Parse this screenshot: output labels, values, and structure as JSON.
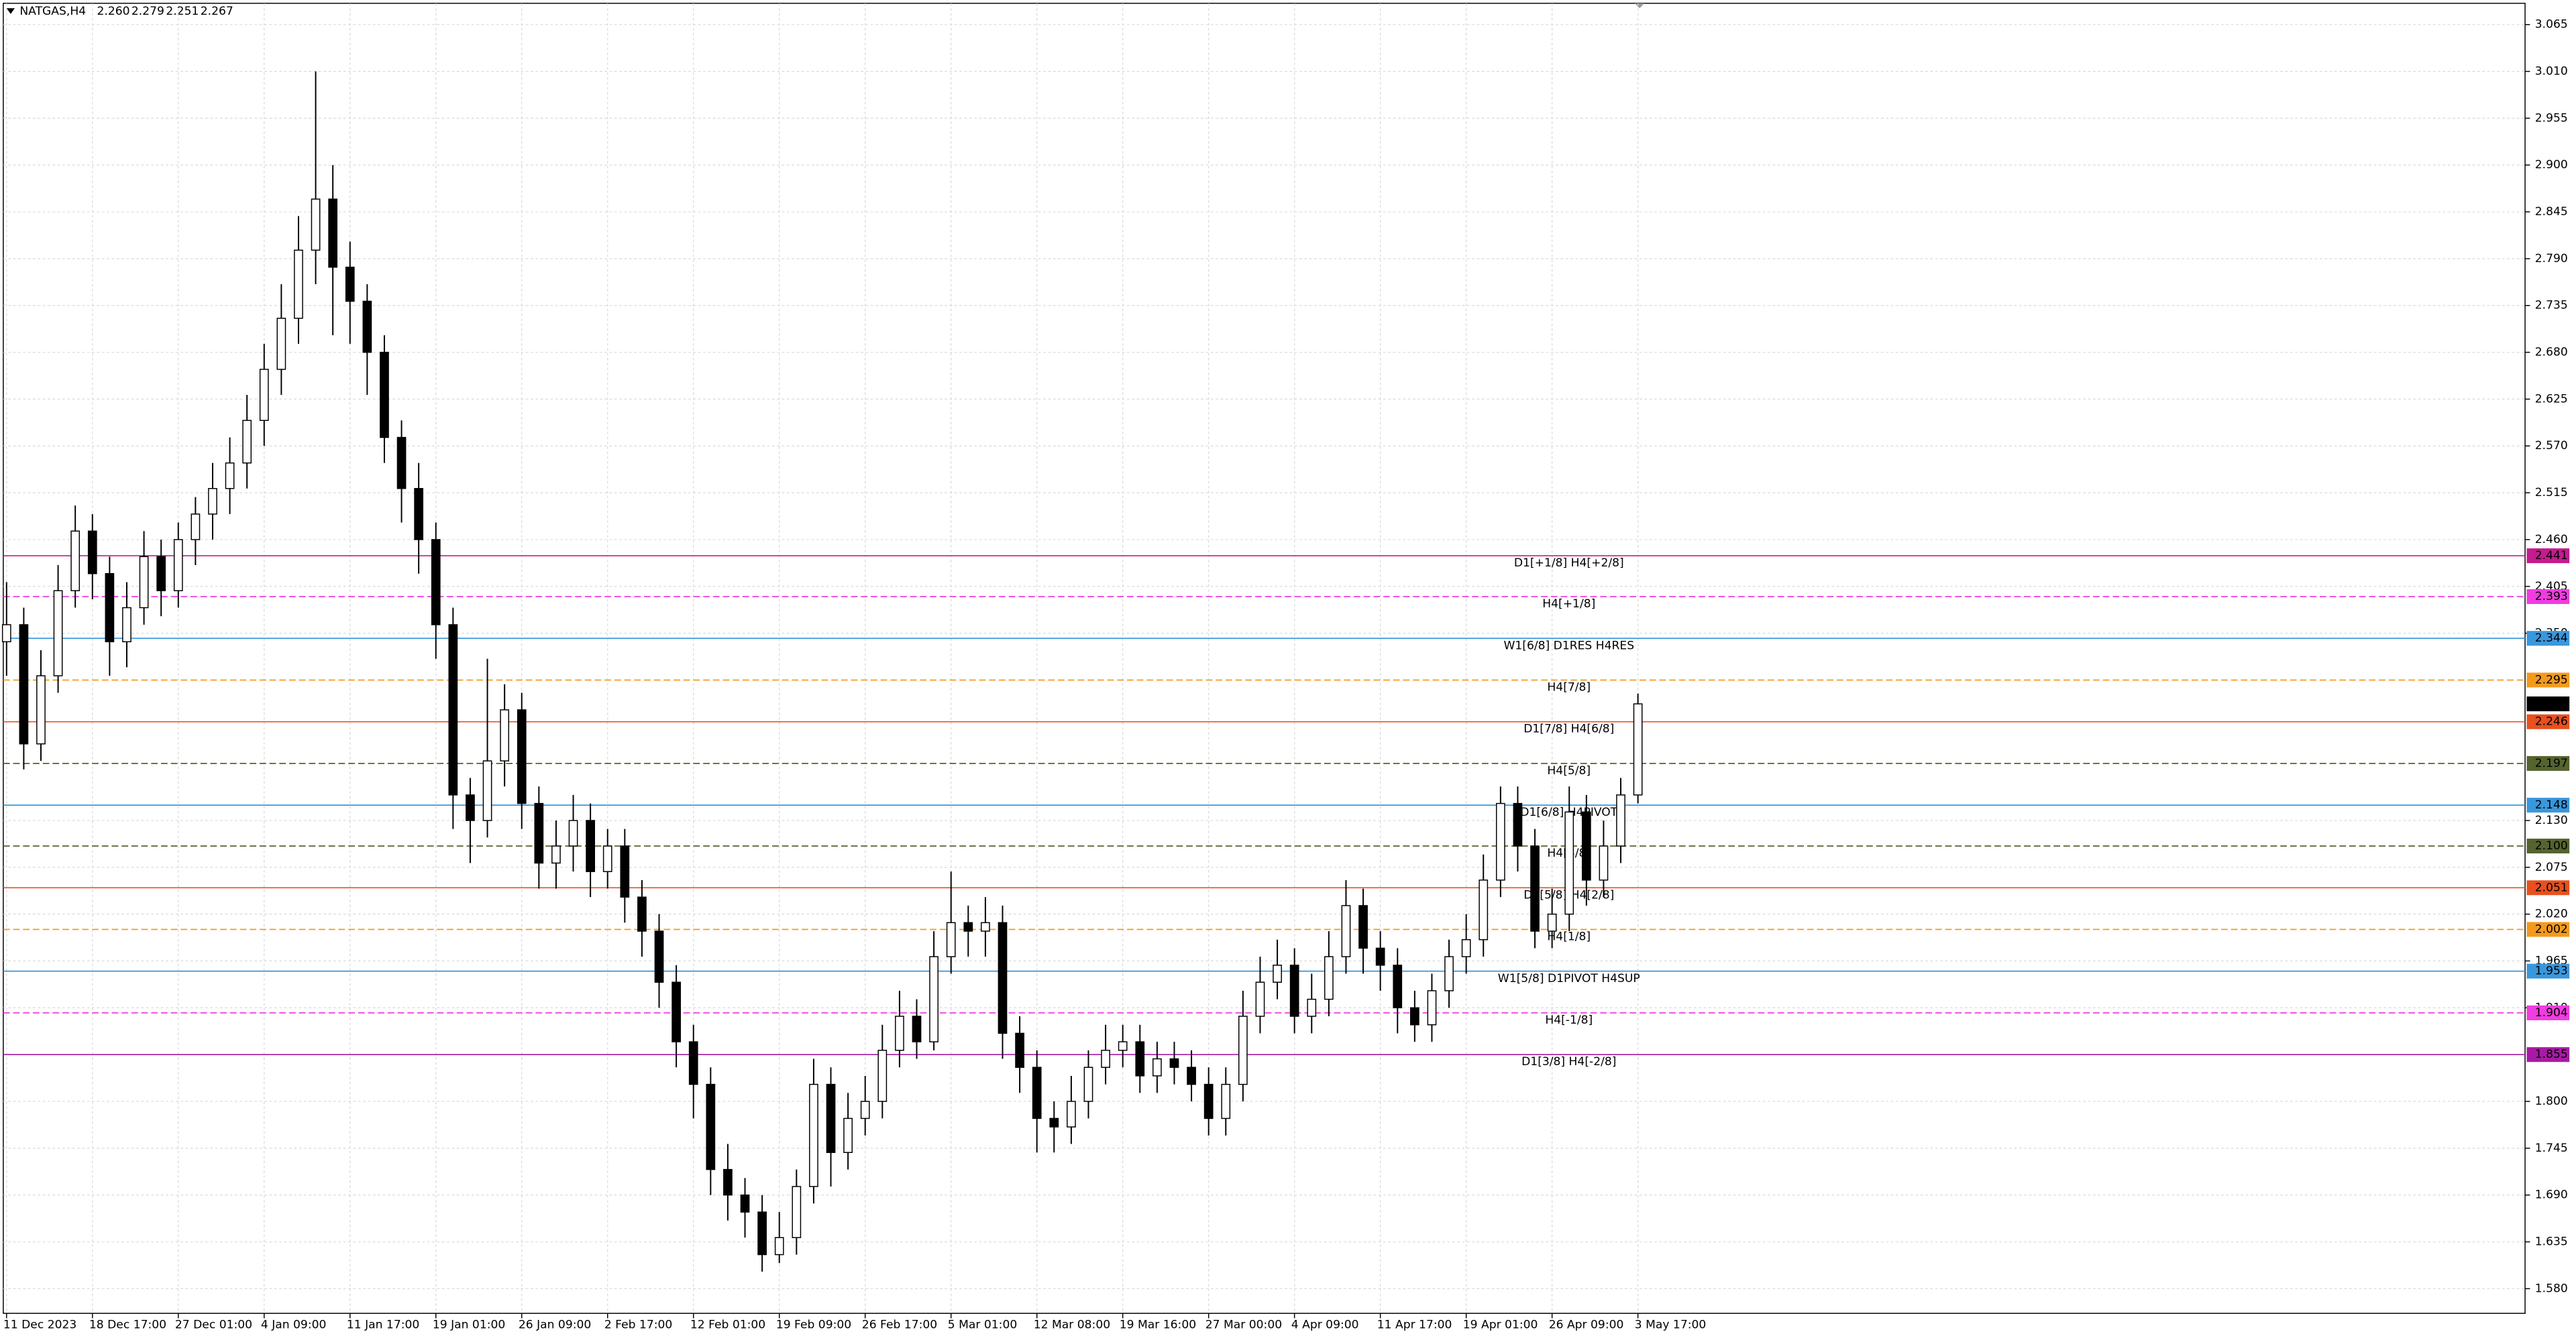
{
  "chart_data": {
    "type": "candlestick",
    "header": {
      "symbol": "NATGAS,H4",
      "ohlc": [
        {
          "value": 2.26,
          "label": "2.260"
        },
        2.279,
        2.251,
        2.267
      ]
    },
    "categories": [
      "11 Dec 2023",
      null,
      null,
      null,
      null,
      "18 Dec 17:00",
      null,
      null,
      null,
      null,
      "27 Dec 01:00",
      null,
      null,
      null,
      null,
      "4 Jan 09:00",
      null,
      null,
      null,
      null,
      "11 Jan 17:00",
      null,
      null,
      null,
      null,
      "19 Jan 01:00",
      null,
      null,
      null,
      null,
      "26 Jan 09:00",
      null,
      null,
      null,
      null,
      "2 Feb 17:00",
      null,
      null,
      null,
      null,
      "12 Feb 01:00",
      null,
      null,
      null,
      null,
      "19 Feb 09:00",
      null,
      null,
      null,
      null,
      "26 Feb 17:00",
      null,
      null,
      null,
      null,
      "5 Mar 01:00",
      null,
      null,
      null,
      null,
      "12 Mar 08:00",
      null,
      null,
      null,
      null,
      "19 Mar 16:00",
      null,
      null,
      null,
      null,
      "27 Mar 00:00",
      null,
      null,
      null,
      null,
      "4 Apr 09:00",
      null,
      null,
      null,
      null,
      "11 Apr 17:00",
      null,
      null,
      null,
      null,
      "19 Apr 01:00",
      null,
      null,
      null,
      null,
      "26 Apr 09:00",
      null,
      null,
      null,
      null,
      "3 May 17:00"
    ],
    "open": [
      2.34,
      2.36,
      2.22,
      2.3,
      2.4,
      2.47,
      2.42,
      2.34,
      2.38,
      2.44,
      2.4,
      2.46,
      2.49,
      2.52,
      2.55,
      2.6,
      2.66,
      2.72,
      2.8,
      2.86,
      2.78,
      2.74,
      2.68,
      2.58,
      2.52,
      2.46,
      2.36,
      2.16,
      2.13,
      2.2,
      2.26,
      2.15,
      2.08,
      2.1,
      2.13,
      2.07,
      2.1,
      2.04,
      2.0,
      1.94,
      1.87,
      1.82,
      1.72,
      1.69,
      1.67,
      1.62,
      1.64,
      1.7,
      1.82,
      1.74,
      1.78,
      1.8,
      1.86,
      1.9,
      1.87,
      1.97,
      2.01,
      2.0,
      2.01,
      1.88,
      1.84,
      1.78,
      1.77,
      1.8,
      1.84,
      1.86,
      1.87,
      1.83,
      1.85,
      1.84,
      1.82,
      1.78,
      1.82,
      1.9,
      1.94,
      1.96,
      1.9,
      1.92,
      1.97,
      2.03,
      1.98,
      1.96,
      1.91,
      1.89,
      1.93,
      1.97,
      1.99,
      2.06,
      2.15,
      2.1,
      2.0,
      2.02,
      2.14,
      2.06,
      2.1,
      2.16
    ],
    "high": [
      2.41,
      2.38,
      2.33,
      2.43,
      2.5,
      2.49,
      2.44,
      2.41,
      2.47,
      2.46,
      2.48,
      2.51,
      2.55,
      2.58,
      2.63,
      2.69,
      2.76,
      2.84,
      3.01,
      2.9,
      2.81,
      2.76,
      2.7,
      2.6,
      2.55,
      2.48,
      2.38,
      2.18,
      2.32,
      2.29,
      2.28,
      2.17,
      2.13,
      2.16,
      2.15,
      2.12,
      2.12,
      2.06,
      2.02,
      1.96,
      1.89,
      1.84,
      1.75,
      1.71,
      1.69,
      1.67,
      1.72,
      1.85,
      1.84,
      1.81,
      1.83,
      1.89,
      1.93,
      1.92,
      2.0,
      2.07,
      2.03,
      2.04,
      2.03,
      1.9,
      1.86,
      1.8,
      1.83,
      1.86,
      1.89,
      1.89,
      1.89,
      1.87,
      1.87,
      1.86,
      1.84,
      1.84,
      1.93,
      1.97,
      1.99,
      1.98,
      1.95,
      2.0,
      2.06,
      2.05,
      2.0,
      1.98,
      1.93,
      1.95,
      1.99,
      2.02,
      2.09,
      2.17,
      2.17,
      2.12,
      2.05,
      2.17,
      2.16,
      2.13,
      2.18,
      2.279
    ],
    "low": [
      2.3,
      2.19,
      2.2,
      2.28,
      2.38,
      2.39,
      2.3,
      2.31,
      2.36,
      2.37,
      2.38,
      2.43,
      2.46,
      2.49,
      2.52,
      2.57,
      2.63,
      2.69,
      2.76,
      2.7,
      2.69,
      2.63,
      2.55,
      2.48,
      2.42,
      2.32,
      2.12,
      2.08,
      2.11,
      2.17,
      2.12,
      2.05,
      2.05,
      2.07,
      2.04,
      2.05,
      2.01,
      1.97,
      1.91,
      1.84,
      1.78,
      1.69,
      1.66,
      1.64,
      1.6,
      1.61,
      1.62,
      1.68,
      1.7,
      1.72,
      1.76,
      1.78,
      1.84,
      1.85,
      1.86,
      1.95,
      1.97,
      1.97,
      1.85,
      1.81,
      1.74,
      1.74,
      1.75,
      1.78,
      1.82,
      1.84,
      1.81,
      1.81,
      1.82,
      1.8,
      1.76,
      1.76,
      1.8,
      1.88,
      1.92,
      1.88,
      1.88,
      1.9,
      1.95,
      1.95,
      1.93,
      1.88,
      1.87,
      1.87,
      1.91,
      1.95,
      1.97,
      2.04,
      2.07,
      1.98,
      1.98,
      2.0,
      2.03,
      2.04,
      2.08,
      2.15
    ],
    "close": [
      2.36,
      2.22,
      2.3,
      2.4,
      2.47,
      2.42,
      2.34,
      2.38,
      2.44,
      2.4,
      2.46,
      2.49,
      2.52,
      2.55,
      2.6,
      2.66,
      2.72,
      2.8,
      2.86,
      2.78,
      2.74,
      2.68,
      2.58,
      2.52,
      2.46,
      2.36,
      2.16,
      2.13,
      2.2,
      2.26,
      2.15,
      2.08,
      2.1,
      2.13,
      2.07,
      2.1,
      2.04,
      2.0,
      1.94,
      1.87,
      1.82,
      1.72,
      1.69,
      1.67,
      1.62,
      1.64,
      1.7,
      1.82,
      1.74,
      1.78,
      1.8,
      1.86,
      1.9,
      1.87,
      1.97,
      2.01,
      2.0,
      2.01,
      1.88,
      1.84,
      1.78,
      1.77,
      1.8,
      1.84,
      1.86,
      1.87,
      1.83,
      1.85,
      1.84,
      1.82,
      1.78,
      1.82,
      1.9,
      1.94,
      1.96,
      1.9,
      1.92,
      1.97,
      2.03,
      1.98,
      1.96,
      1.91,
      1.89,
      1.93,
      1.97,
      1.99,
      2.06,
      2.15,
      2.1,
      2.0,
      2.02,
      2.14,
      2.06,
      2.1,
      2.16,
      2.267
    ],
    "ylim": [
      1.551,
      3.09
    ],
    "yticks": [
      3.065,
      {
        "value": 3.01,
        "label": "3.010"
      },
      2.955,
      {
        "value": 2.9,
        "label": "2.900"
      },
      2.845,
      {
        "value": 2.79,
        "label": "2.790"
      },
      2.735,
      {
        "value": 2.68,
        "label": "2.680"
      },
      2.625,
      {
        "value": 2.57,
        "label": "2.570"
      },
      2.515,
      {
        "value": 2.46,
        "label": "2.460"
      },
      2.405,
      {
        "value": 2.35,
        "label": "2.350"
      },
      {
        "value": 2.13,
        "label": "2.130"
      },
      2.075,
      {
        "value": 2.02,
        "label": "2.020"
      },
      1.965,
      {
        "value": 1.91,
        "label": "1.910"
      },
      {
        "value": 1.8,
        "label": "1.800"
      },
      1.745,
      {
        "value": 1.69,
        "label": "1.690"
      },
      1.635,
      {
        "value": 1.58,
        "label": "1.580"
      }
    ],
    "grid": true,
    "levels": [
      {
        "value": 2.441,
        "price_label": "2.441",
        "label": "D1[+1/8] H4[+2/8]",
        "color": "#c41c8e",
        "dashed": false
      },
      {
        "value": 2.393,
        "price_label": "2.393",
        "label": "H4[+1/8]",
        "color": "#f03ce0",
        "dashed": true
      },
      {
        "value": 2.344,
        "price_label": "2.344",
        "label": "W1[6/8] D1RES H4RES",
        "color": "#3a97dc",
        "dashed": false
      },
      {
        "value": 2.295,
        "price_label": "2.295",
        "label": "H4[7/8]",
        "color": "#f39a1e",
        "dashed": true
      },
      {
        "value": 2.246,
        "price_label": "2.246",
        "label": "D1[7/8] H4[6/8]",
        "color": "#e8501f",
        "dashed": false
      },
      {
        "value": 2.197,
        "price_label": "2.197",
        "label": "H4[5/8]",
        "color": "#55632f",
        "dashed": true
      },
      {
        "value": 2.148,
        "price_label": "2.148",
        "label": "D1[6/8] H4PIVOT",
        "color": "#3a97dc",
        "dashed": false
      },
      {
        "value": 2.1,
        "price_label": "2.100",
        "label": "H4[3/8]",
        "color": "#55632f",
        "dashed": true
      },
      {
        "value": 2.051,
        "price_label": "2.051",
        "label": "D1[5/8] H4[2/8]",
        "color": "#e8501f",
        "dashed": false
      },
      {
        "value": 2.002,
        "price_label": "2.002",
        "label": "H4[1/8]",
        "color": "#f39a1e",
        "dashed": true
      },
      {
        "value": 1.953,
        "price_label": "1.953",
        "label": "W1[5/8] D1PIVOT H4SUP",
        "color": "#3a97dc",
        "dashed": false
      },
      {
        "value": 1.904,
        "price_label": "1.904",
        "label": "H4[-1/8]",
        "color": "#f03ce0",
        "dashed": true
      },
      {
        "value": 1.855,
        "price_label": "1.855",
        "label": "D1[3/8] H4[-2/8]",
        "color": "#a81aa5",
        "dashed": false
      }
    ],
    "last_price": {
      "value": 2.267,
      "label": "2.267",
      "color": "#000000"
    }
  }
}
